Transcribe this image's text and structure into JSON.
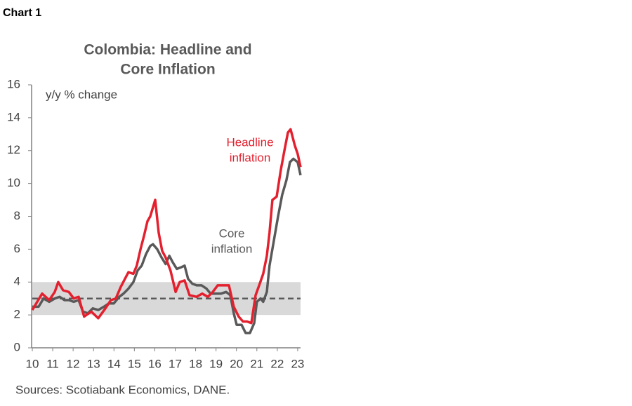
{
  "chart_label": "Chart 1",
  "source": "Sources: Scotiabank Economics, DANE.",
  "chart_data": {
    "type": "line",
    "title": [
      "Colombia: Headline and",
      "Core Inflation"
    ],
    "y_label": "y/y % change",
    "xlim": [
      10,
      23.14
    ],
    "xticks": [
      10,
      11,
      12,
      13,
      14,
      15,
      16,
      17,
      18,
      19,
      20,
      21,
      22,
      23
    ],
    "ylim": [
      0,
      16
    ],
    "yticks": [
      0,
      2,
      4,
      6,
      8,
      10,
      12,
      14,
      16
    ],
    "target_range": [
      2,
      4
    ],
    "target_range_color": "#d9d9d9",
    "target": 3,
    "target_color": "#595959",
    "series": [
      {
        "name": "Core inflation",
        "label_lines": [
          "Core",
          "inflation"
        ],
        "color": "#595959",
        "x": [
          10.0,
          10.31,
          10.55,
          10.83,
          11.1,
          11.34,
          11.58,
          11.79,
          12.03,
          12.27,
          12.48,
          12.72,
          12.96,
          13.23,
          13.51,
          13.75,
          13.99,
          14.26,
          14.47,
          14.71,
          14.95,
          15.16,
          15.36,
          15.57,
          15.78,
          15.91,
          16.12,
          16.33,
          16.53,
          16.71,
          16.88,
          17.08,
          17.29,
          17.46,
          17.63,
          17.84,
          18.05,
          18.29,
          18.53,
          18.73,
          19.01,
          19.25,
          19.49,
          19.7,
          19.87,
          20.01,
          20.25,
          20.45,
          20.66,
          20.87,
          21.0,
          21.18,
          21.31,
          21.49,
          21.62,
          21.83,
          22.04,
          22.24,
          22.45,
          22.62,
          22.79,
          23.0,
          23.14
        ],
        "values": [
          2.5,
          2.5,
          3.0,
          2.8,
          3.0,
          3.1,
          2.9,
          2.9,
          2.8,
          2.9,
          2.2,
          2.1,
          2.4,
          2.3,
          2.5,
          2.7,
          2.7,
          3.1,
          3.3,
          3.6,
          4.0,
          4.7,
          5.0,
          5.7,
          6.2,
          6.3,
          6.0,
          5.5,
          5.1,
          5.6,
          5.2,
          4.8,
          4.9,
          5.0,
          4.2,
          3.9,
          3.8,
          3.8,
          3.6,
          3.3,
          3.3,
          3.3,
          3.4,
          3.2,
          2.1,
          1.4,
          1.4,
          0.9,
          0.9,
          1.5,
          2.8,
          3.0,
          2.8,
          3.4,
          5.0,
          6.5,
          8.0,
          9.3,
          10.2,
          11.3,
          11.5,
          11.3,
          10.5
        ]
      },
      {
        "name": "Headline inflation",
        "label_lines": [
          "Headline",
          "inflation"
        ],
        "color": "#e4202e",
        "x": [
          10.0,
          10.48,
          10.83,
          11.1,
          11.27,
          11.51,
          11.79,
          12.03,
          12.27,
          12.54,
          12.89,
          13.23,
          13.58,
          13.85,
          14.09,
          14.33,
          14.54,
          14.71,
          14.95,
          15.12,
          15.3,
          15.47,
          15.64,
          15.78,
          16.02,
          16.19,
          16.36,
          16.53,
          16.77,
          17.02,
          17.22,
          17.46,
          17.7,
          18.05,
          18.32,
          18.6,
          18.84,
          19.08,
          19.35,
          19.63,
          19.87,
          20.11,
          20.32,
          20.52,
          20.73,
          20.94,
          21.14,
          21.31,
          21.49,
          21.62,
          21.76,
          21.97,
          22.17,
          22.35,
          22.52,
          22.65,
          22.86,
          23.0,
          23.14
        ],
        "values": [
          2.3,
          3.3,
          2.9,
          3.4,
          4.0,
          3.5,
          3.4,
          3.0,
          3.1,
          1.9,
          2.2,
          1.8,
          2.4,
          2.9,
          3.0,
          3.7,
          4.2,
          4.6,
          4.5,
          5.0,
          6.0,
          6.8,
          7.7,
          8.0,
          9.0,
          7.0,
          5.9,
          5.5,
          4.7,
          3.4,
          4.0,
          4.1,
          3.2,
          3.1,
          3.3,
          3.1,
          3.4,
          3.8,
          3.8,
          3.8,
          2.5,
          1.9,
          1.6,
          1.6,
          1.5,
          3.2,
          3.9,
          4.5,
          5.6,
          7.0,
          9.0,
          9.2,
          10.8,
          12.0,
          13.1,
          13.3,
          12.3,
          11.8,
          11.0
        ]
      }
    ]
  }
}
